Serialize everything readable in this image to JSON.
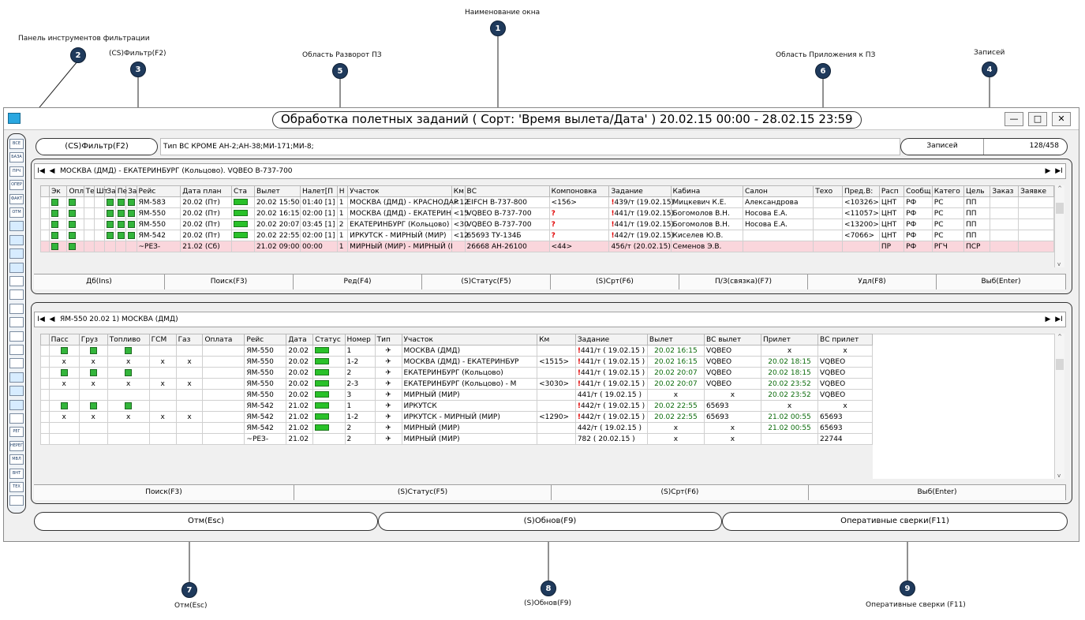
{
  "callouts": [
    {
      "num": "1",
      "label": "Наименование окна"
    },
    {
      "num": "2",
      "label": "Панель инструментов фильтрации"
    },
    {
      "num": "3",
      "label": "(CS)Фильтр(F2)"
    },
    {
      "num": "4",
      "label": "Записей"
    },
    {
      "num": "5",
      "label": "Область Разворот ПЗ"
    },
    {
      "num": "6",
      "label": "Область Приложения к ПЗ"
    },
    {
      "num": "7",
      "label": "Отм(Esc)"
    },
    {
      "num": "8",
      "label": "(S)Обнов(F9)"
    },
    {
      "num": "9",
      "label": "Оперативные сверки (F11)"
    }
  ],
  "window": {
    "title": "Обработка полетных заданий ( Сорт: 'Время вылета/Дата' ) 20.02.15 00:00 - 28.02.15 23:59",
    "minimize": "—",
    "maximize": "□",
    "close": "✕"
  },
  "toolbar": [
    "ВСЕ",
    "БАЗА",
    "ПРЧ",
    "ОПЕР",
    "ФАКТ",
    "ОТМ",
    "",
    "",
    "",
    "",
    "",
    "",
    "",
    "",
    "",
    "",
    "",
    "",
    "",
    "",
    "",
    "РЕГ",
    "НЕРЕГ",
    "МВЛ",
    "ВНТ",
    "ТЕХ",
    ""
  ],
  "filter": {
    "button": "(CS)Фильтр(F2)",
    "text": "Тип ВС КРОМЕ АН-2;АН-38;МИ-171;МИ-8;",
    "records_label": "Записей",
    "records_value": "128/458"
  },
  "top_nav": {
    "first": "I◀",
    "prev": "◀",
    "text": "МОСКВА (ДМД) - ЕКАТЕРИНБУРГ (Кольцово). VQBEO В-737-700",
    "next": "▶",
    "last": "▶I"
  },
  "top_columns": [
    "Эк",
    "Опл",
    "Те",
    "Шт",
    "За",
    "Пе",
    "За",
    "Рейс",
    "Дата план",
    "Ста",
    "Вылет",
    "Налет[П",
    "Н",
    "Участок",
    "Км",
    "ВС",
    "Компоновка",
    "Задание",
    "Кабина",
    "Салон",
    "Техо",
    "Пред.В:",
    "Расп",
    "Сообщ",
    "Катего",
    "Цель",
    "Заказ",
    "Заявке"
  ],
  "top_rows": [
    {
      "chk": [
        1,
        1,
        0,
        0,
        1,
        1,
        1
      ],
      "flight": "ЯМ-583",
      "date": "20.02 (Пт)",
      "st": 1,
      "dep": "20.02 15:50",
      "nalet": "01:40 [1]",
      "n": "1",
      "leg": "МОСКВА (ДМД) - КРАСНОДАР",
      "km": "<12",
      "vs": "EIFCH B-737-800",
      "komp": "<156>",
      "zmark": "!",
      "zad": "439/т (19.02.15)",
      "kab": "Мицкевич К.Е.",
      "salon": "Александрова",
      "tech": "",
      "pred": "<10326>",
      "rasp": "ЦНТ",
      "soob": "РФ",
      "kat": "РС",
      "cel": "ПП",
      "zak": "",
      "zay": "",
      "pink": false
    },
    {
      "chk": [
        1,
        1,
        0,
        0,
        1,
        1,
        1
      ],
      "flight": "ЯМ-550",
      "date": "20.02 (Пт)",
      "st": 1,
      "dep": "20.02 16:15",
      "nalet": "02:00 [1]",
      "n": "1",
      "leg": "МОСКВА (ДМД) - ЕКАТЕРИН",
      "km": "<15",
      "vs": "VQBEO B-737-700",
      "komp": "?",
      "zmark": "!",
      "zad": "441/т (19.02.15)",
      "kab": "Богомолов В.Н.",
      "salon": "Носова Е.А.",
      "tech": "",
      "pred": "<11057>",
      "rasp": "ЦНТ",
      "soob": "РФ",
      "kat": "РС",
      "cel": "ПП",
      "zak": "",
      "zay": "",
      "pink": false
    },
    {
      "chk": [
        1,
        1,
        0,
        0,
        1,
        1,
        1
      ],
      "flight": "ЯМ-550",
      "date": "20.02 (Пт)",
      "st": 1,
      "dep": "20.02 20:07",
      "nalet": "03:45 [1]",
      "n": "2",
      "leg": "ЕКАТЕРИНБУРГ (Кольцово)",
      "km": "<30",
      "vs": "VQBEO B-737-700",
      "komp": "?",
      "zmark": "!",
      "zad": "441/т (19.02.15)",
      "kab": "Богомолов В.Н.",
      "salon": "Носова Е.А.",
      "tech": "",
      "pred": "<13200>",
      "rasp": "ЦНТ",
      "soob": "РФ",
      "kat": "РС",
      "cel": "ПП",
      "zak": "",
      "zay": "",
      "pink": false
    },
    {
      "chk": [
        1,
        1,
        0,
        0,
        1,
        1,
        1
      ],
      "flight": "ЯМ-542",
      "date": "20.02 (Пт)",
      "st": 1,
      "dep": "20.02 22:55",
      "nalet": "02:00 [1]",
      "n": "1",
      "leg": "ИРКУТСК - МИРНЫЙ (МИР)",
      "km": "<12",
      "vs": "65693 ТУ-134Б",
      "komp": "?",
      "zmark": "!",
      "zad": "442/т (19.02.15)",
      "kab": "Киселев Ю.В.",
      "salon": "",
      "tech": "",
      "pred": "<7066>",
      "rasp": "ЦНТ",
      "soob": "РФ",
      "kat": "РС",
      "cel": "ПП",
      "zak": "",
      "zay": "",
      "pink": false
    },
    {
      "chk": [
        1,
        1,
        0,
        0,
        0,
        0,
        0
      ],
      "flight": "~РЕЗ-",
      "date": "21.02 (Сб)",
      "st": 0,
      "dep": "21.02 09:00",
      "nalet": "00:00",
      "n": "1",
      "leg": "МИРНЫЙ (МИР) - МИРНЫЙ (I",
      "km": "",
      "vs": "26668 АН-26100",
      "komp": "<44>",
      "zmark": "",
      "zad": "456/т (20.02.15)",
      "kab": "Семенов Э.В.",
      "salon": "",
      "tech": "",
      "pred": "",
      "rasp": "ПР",
      "soob": "РФ",
      "kat": "РГЧ",
      "cel": "ПСР",
      "zak": "",
      "zay": "",
      "pink": true
    }
  ],
  "top_buttons": [
    "Дб(Ins)",
    "Поиск(F3)",
    "Ред(F4)",
    "(S)Статус(F5)",
    "(S)Срт(F6)",
    "П/З(связка)(F7)",
    "Удл(F8)",
    "Выб(Enter)"
  ],
  "bottom_nav": {
    "first": "I◀",
    "prev": "◀",
    "text": "ЯМ-550 20.02 1) МОСКВА (ДМД)",
    "next": "▶",
    "last": "▶I"
  },
  "bottom_columns": [
    "Пасс",
    "Груз",
    "Топливо",
    "ГСМ",
    "Газ",
    "Оплата",
    "Рейс",
    "Дата",
    "Статус",
    "Номер",
    "Тип",
    "Участок",
    "Км",
    "Задание",
    "Вылет",
    "ВС вылет",
    "Прилет",
    "ВС прилет"
  ],
  "bottom_rows": [
    {
      "p": "c",
      "g": "c",
      "t": "c",
      "gsm": "",
      "gaz": "",
      "opl": "",
      "flight": "ЯМ-550",
      "date": "20.02",
      "st": 1,
      "num": "1",
      "type": "✈",
      "leg": "МОСКВА (ДМД)",
      "km": "",
      "zmark": "!",
      "zad": "441/т ( 19.02.15 )",
      "dep": "20.02 16:15",
      "vsdep": "VQBEO",
      "arr": "x",
      "vsarr": "x"
    },
    {
      "p": "x",
      "g": "x",
      "t": "x",
      "gsm": "x",
      "gaz": "x",
      "opl": "",
      "flight": "ЯМ-550",
      "date": "20.02",
      "st": 1,
      "num": "1-2",
      "type": "✈",
      "leg": "МОСКВА (ДМД) - ЕКАТЕРИНБУР",
      "km": "<1515>",
      "zmark": "!",
      "zad": "441/т ( 19.02.15 )",
      "dep": "20.02 16:15",
      "vsdep": "VQBEO",
      "arr": "20.02 18:15",
      "vsarr": "VQBEO"
    },
    {
      "p": "c",
      "g": "c",
      "t": "c",
      "gsm": "",
      "gaz": "",
      "opl": "",
      "flight": "ЯМ-550",
      "date": "20.02",
      "st": 1,
      "num": "2",
      "type": "✈",
      "leg": "ЕКАТЕРИНБУРГ (Кольцово)",
      "km": "",
      "zmark": "!",
      "zad": "441/т ( 19.02.15 )",
      "dep": "20.02 20:07",
      "vsdep": "VQBEO",
      "arr": "20.02 18:15",
      "vsarr": "VQBEO"
    },
    {
      "p": "x",
      "g": "x",
      "t": "x",
      "gsm": "x",
      "gaz": "x",
      "opl": "",
      "flight": "ЯМ-550",
      "date": "20.02",
      "st": 1,
      "num": "2-3",
      "type": "✈",
      "leg": "ЕКАТЕРИНБУРГ (Кольцово) - М",
      "km": "<3030>",
      "zmark": "!",
      "zad": "441/т ( 19.02.15 )",
      "dep": "20.02 20:07",
      "vsdep": "VQBEO",
      "arr": "20.02 23:52",
      "vsarr": "VQBEO"
    },
    {
      "p": "",
      "g": "",
      "t": "",
      "gsm": "",
      "gaz": "",
      "opl": "",
      "flight": "ЯМ-550",
      "date": "20.02",
      "st": 1,
      "num": "3",
      "type": "✈",
      "leg": "МИРНЫЙ (МИР)",
      "km": "",
      "zmark": "",
      "zad": "441/т ( 19.02.15 )",
      "dep": "x",
      "vsdep": "x",
      "arr": "20.02 23:52",
      "vsarr": "VQBEO"
    },
    {
      "p": "c",
      "g": "c",
      "t": "c",
      "gsm": "",
      "gaz": "",
      "opl": "",
      "flight": "ЯМ-542",
      "date": "21.02",
      "st": 1,
      "num": "1",
      "type": "✈",
      "leg": "ИРКУТСК",
      "km": "",
      "zmark": "!",
      "zad": "442/т ( 19.02.15 )",
      "dep": "20.02 22:55",
      "vsdep": "65693",
      "arr": "x",
      "vsarr": "x"
    },
    {
      "p": "x",
      "g": "x",
      "t": "x",
      "gsm": "x",
      "gaz": "x",
      "opl": "",
      "flight": "ЯМ-542",
      "date": "21.02",
      "st": 1,
      "num": "1-2",
      "type": "✈",
      "leg": "ИРКУТСК - МИРНЫЙ (МИР)",
      "km": "<1290>",
      "zmark": "!",
      "zad": "442/т ( 19.02.15 )",
      "dep": "20.02 22:55",
      "vsdep": "65693",
      "arr": "21.02 00:55",
      "vsarr": "65693"
    },
    {
      "p": "",
      "g": "",
      "t": "",
      "gsm": "",
      "gaz": "",
      "opl": "",
      "flight": "ЯМ-542",
      "date": "21.02",
      "st": 1,
      "num": "2",
      "type": "✈",
      "leg": "МИРНЫЙ (МИР)",
      "km": "",
      "zmark": "",
      "zad": "442/т ( 19.02.15 )",
      "dep": "x",
      "vsdep": "x",
      "arr": "21.02 00:55",
      "vsarr": "65693"
    },
    {
      "p": "",
      "g": "",
      "t": "",
      "gsm": "",
      "gaz": "",
      "opl": "",
      "flight": "~РЕЗ-",
      "date": "21.02",
      "st": 0,
      "num": "2",
      "type": "✈",
      "leg": "МИРНЫЙ (МИР)",
      "km": "",
      "zmark": "",
      "zad": "782 ( 20.02.15 )",
      "dep": "x",
      "vsdep": "x",
      "arr": "",
      "vsarr": "22744"
    }
  ],
  "bottom_buttons": [
    "Поиск(F3)",
    "(S)Статус(F5)",
    "(S)Срт(F6)",
    "Выб(Enter)"
  ],
  "footer_buttons": [
    "Отм(Esc)",
    "(S)Обнов(F9)",
    "Оперативные сверки(F11)"
  ],
  "colors": {
    "callout": "#1f3a5c",
    "status_green": "#29c129",
    "pink_row": "#fad6dc",
    "red_mark": "#e00000",
    "time_green": "#0b6b0b"
  }
}
